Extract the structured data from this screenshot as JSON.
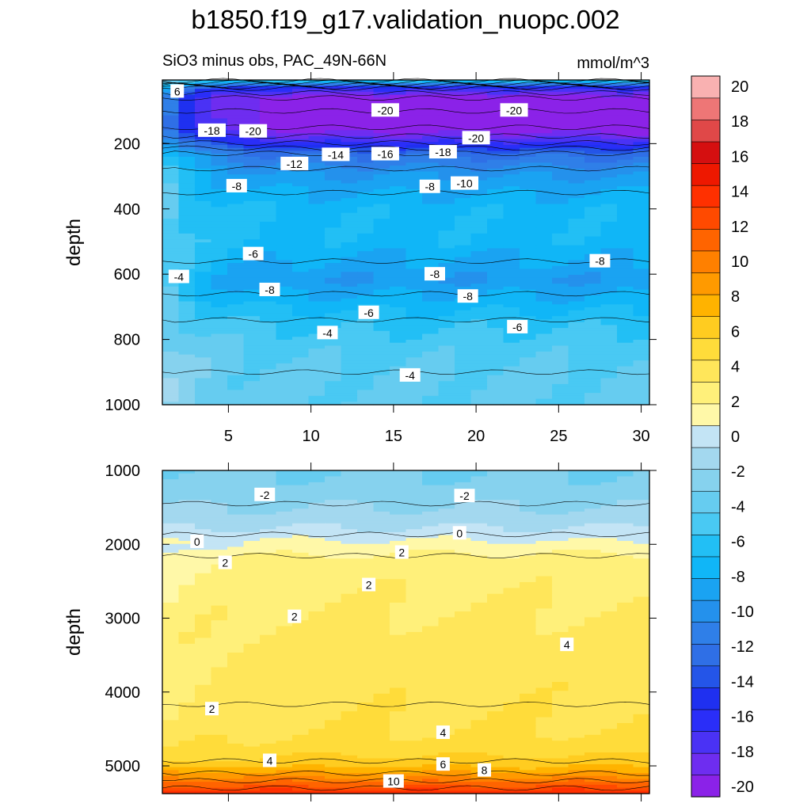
{
  "title": "b1850.f19_g17.validation_nuopc.002",
  "subtitle_left": "SiO3 minus obs, PAC_49N-66N",
  "subtitle_right": "mmol/m^3",
  "colorbar": {
    "levels": [
      -20,
      -18,
      -16,
      -14,
      -12,
      -10,
      -8,
      -6,
      -4,
      -2,
      0,
      2,
      4,
      6,
      8,
      10,
      12,
      14,
      16,
      18,
      20
    ],
    "tick_labels": [
      "-20",
      "-18",
      "-16",
      "-14",
      "-12",
      "-10",
      "-8",
      "-6",
      "-4",
      "-2",
      "0",
      "2",
      "4",
      "6",
      "8",
      "10",
      "12",
      "14",
      "16",
      "18",
      "20"
    ],
    "colors": [
      "#8b22e8",
      "#6e2df0",
      "#4a32f5",
      "#2a2ef8",
      "#1f30f0",
      "#2455e8",
      "#2f6fe6",
      "#2f7fe8",
      "#2491ec",
      "#1aa3f2",
      "#10b6f7",
      "#22bff5",
      "#49c9f3",
      "#66ccf0",
      "#86d2ee",
      "#a3d8ef",
      "#c3e4f5",
      "#fff8a8",
      "#fff07a",
      "#ffe65a",
      "#ffdc3a",
      "#ffcc20",
      "#ffb300",
      "#ff9a00",
      "#ff8000",
      "#ff6400",
      "#ff4a00",
      "#ff3000",
      "#ee1800",
      "#d50f10",
      "#e04848",
      "#ee7676",
      "#f9b1b1"
    ]
  },
  "chart_data": [
    {
      "type": "heatmap",
      "panel": "upper",
      "ylabel": "depth",
      "xlim": [
        1,
        30.5
      ],
      "ylim": [
        1000,
        5
      ],
      "x_ticks": [
        5,
        10,
        15,
        20,
        25,
        30
      ],
      "x_tick_labels": [
        "5",
        "10",
        "15",
        "20",
        "25",
        "30"
      ],
      "y_ticks": [
        200,
        400,
        600,
        800,
        1000
      ],
      "y_tick_labels": [
        "200",
        "400",
        "600",
        "800",
        "1000"
      ],
      "depths": [
        5,
        30,
        60,
        100,
        150,
        190,
        230,
        300,
        400,
        500,
        560,
        620,
        660,
        740,
        800,
        900,
        1000
      ],
      "profile": [
        -5,
        -16,
        -20,
        -20,
        -20,
        -17,
        -12,
        -9,
        -7,
        -7,
        -8,
        -9,
        -8,
        -6,
        -5,
        -4,
        -4
      ],
      "contour_labels": [
        {
          "text": "-20",
          "x": 14.5,
          "depth": 98
        },
        {
          "text": "-20",
          "x": 22.3,
          "depth": 98
        },
        {
          "text": "-18",
          "x": 4.0,
          "depth": 160
        },
        {
          "text": "-20",
          "x": 6.5,
          "depth": 162
        },
        {
          "text": "-20",
          "x": 20.0,
          "depth": 183
        },
        {
          "text": "-12",
          "x": 9.0,
          "depth": 262
        },
        {
          "text": "-14",
          "x": 11.5,
          "depth": 234
        },
        {
          "text": "-16",
          "x": 14.5,
          "depth": 232
        },
        {
          "text": "-18",
          "x": 18.0,
          "depth": 226
        },
        {
          "text": "-10",
          "x": 19.3,
          "depth": 322
        },
        {
          "text": "-8",
          "x": 5.5,
          "depth": 330
        },
        {
          "text": "-8",
          "x": 17.2,
          "depth": 332
        },
        {
          "text": "-6",
          "x": 6.5,
          "depth": 538
        },
        {
          "text": "-8",
          "x": 27.5,
          "depth": 560
        },
        {
          "text": "-4",
          "x": 2.0,
          "depth": 608
        },
        {
          "text": "-8",
          "x": 17.5,
          "depth": 600
        },
        {
          "text": "-8",
          "x": 7.5,
          "depth": 648
        },
        {
          "text": "-8",
          "x": 19.5,
          "depth": 668
        },
        {
          "text": "-6",
          "x": 13.5,
          "depth": 718
        },
        {
          "text": "-6",
          "x": 22.5,
          "depth": 762
        },
        {
          "text": "-4",
          "x": 11.0,
          "depth": 780
        },
        {
          "text": "-4",
          "x": 16.0,
          "depth": 910
        },
        {
          "text": "6",
          "x": 1.9,
          "depth": 40
        }
      ]
    },
    {
      "type": "heatmap",
      "panel": "lower",
      "ylabel": "depth",
      "xlim": [
        1,
        30.5
      ],
      "ylim": [
        5375,
        1000
      ],
      "y_ticks": [
        1000,
        2000,
        3000,
        4000,
        5000
      ],
      "y_tick_labels": [
        "1000",
        "2000",
        "3000",
        "4000",
        "5000"
      ],
      "depths": [
        1000,
        1300,
        1600,
        1800,
        2000,
        2200,
        2500,
        3000,
        3500,
        4000,
        4500,
        4800,
        5000,
        5100,
        5200,
        5300,
        5375
      ],
      "profile": [
        -3,
        -2.5,
        -1.5,
        -0.5,
        1,
        2.3,
        2.7,
        3.2,
        3.7,
        3.9,
        4.2,
        5,
        6.5,
        8,
        10,
        12,
        14
      ],
      "contour_labels": [
        {
          "text": "-2",
          "x": 7.2,
          "depth": 1330
        },
        {
          "text": "-2",
          "x": 19.3,
          "depth": 1345
        },
        {
          "text": "0",
          "x": 19.0,
          "depth": 1850
        },
        {
          "text": "0",
          "x": 3.1,
          "depth": 1965
        },
        {
          "text": "2",
          "x": 15.5,
          "depth": 2110
        },
        {
          "text": "2",
          "x": 4.8,
          "depth": 2250
        },
        {
          "text": "2",
          "x": 13.5,
          "depth": 2550
        },
        {
          "text": "2",
          "x": 9.0,
          "depth": 2980
        },
        {
          "text": "4",
          "x": 25.5,
          "depth": 3360
        },
        {
          "text": "2",
          "x": 4.0,
          "depth": 4230
        },
        {
          "text": "4",
          "x": 18.0,
          "depth": 4550
        },
        {
          "text": "4",
          "x": 7.5,
          "depth": 4930
        },
        {
          "text": "6",
          "x": 18.0,
          "depth": 4980
        },
        {
          "text": "8",
          "x": 20.5,
          "depth": 5060
        },
        {
          "text": "10",
          "x": 15.0,
          "depth": 5210
        }
      ]
    }
  ]
}
